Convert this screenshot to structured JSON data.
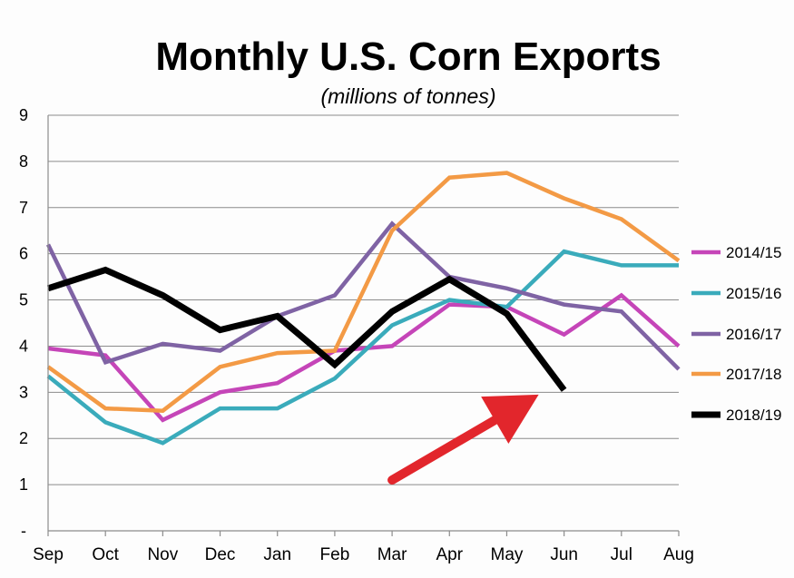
{
  "chart_data": {
    "type": "line",
    "title": "Monthly U.S. Corn Exports",
    "subtitle": "(millions of tonnes)",
    "xlabel": "",
    "ylabel": "",
    "categories": [
      "Sep",
      "Oct",
      "Nov",
      "Dec",
      "Jan",
      "Feb",
      "Mar",
      "Apr",
      "May",
      "Jun",
      "Jul",
      "Aug"
    ],
    "ylim": [
      0,
      9
    ],
    "yticks": [
      "-",
      "1",
      "2",
      "3",
      "4",
      "5",
      "6",
      "7",
      "8",
      "9"
    ],
    "grid": true,
    "legend_position": "right",
    "series": [
      {
        "name": "2014/15",
        "color": "#c545b8",
        "values": [
          3.95,
          3.8,
          2.4,
          3.0,
          3.2,
          3.9,
          4.0,
          4.9,
          4.85,
          4.25,
          5.1,
          4.0
        ]
      },
      {
        "name": "2015/16",
        "color": "#3aabbb",
        "values": [
          3.35,
          2.35,
          1.9,
          2.65,
          2.65,
          3.3,
          4.45,
          5.0,
          4.85,
          6.05,
          5.75,
          5.75
        ]
      },
      {
        "name": "2016/17",
        "color": "#7f63a4",
        "values": [
          6.2,
          3.65,
          4.05,
          3.9,
          4.65,
          5.1,
          6.65,
          5.5,
          5.25,
          4.9,
          4.75,
          3.5
        ]
      },
      {
        "name": "2017/18",
        "color": "#f39a45",
        "values": [
          3.55,
          2.65,
          2.6,
          3.55,
          3.85,
          3.9,
          6.5,
          7.65,
          7.75,
          7.2,
          6.75,
          5.85
        ]
      },
      {
        "name": "2018/19",
        "color": "#000000",
        "values": [
          5.25,
          5.65,
          5.1,
          4.35,
          4.65,
          3.6,
          4.75,
          5.45,
          4.7,
          3.05,
          null,
          null
        ]
      }
    ],
    "annotation": {
      "type": "arrow",
      "color": "#e2262c",
      "from": [
        "Mar",
        1.1
      ],
      "to": [
        "Jun",
        2.95
      ]
    }
  }
}
